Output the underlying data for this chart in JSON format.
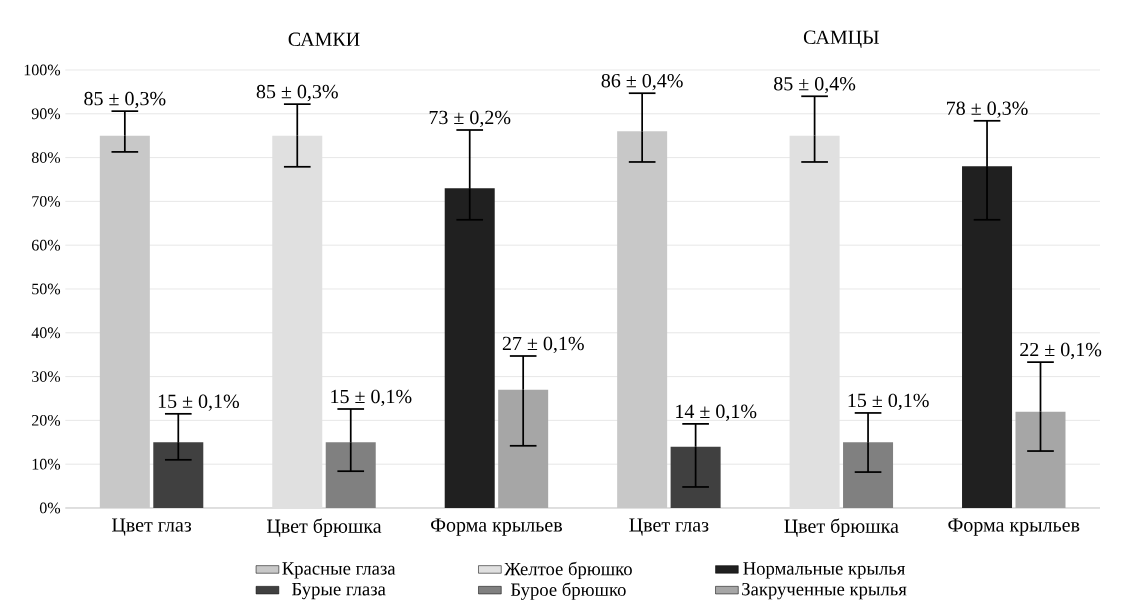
{
  "chart_data": {
    "type": "bar",
    "categories": [
      "Цвет глаз",
      "Цвет брюшка",
      "Форма крыльев",
      "Цвет глаз",
      "Цвет брюшка",
      "Форма крыльев"
    ],
    "annotations": [
      "САМКИ",
      "САМЦЫ"
    ],
    "ylim": [
      0,
      100
    ],
    "yticks": [
      {
        "value": 0,
        "label": "0%"
      },
      {
        "value": 10,
        "label": "10%"
      },
      {
        "value": 20,
        "label": "20%"
      },
      {
        "value": 30,
        "label": "30%"
      },
      {
        "value": 40,
        "label": "40%"
      },
      {
        "value": 50,
        "label": "50%"
      },
      {
        "value": 60,
        "label": "60%"
      },
      {
        "value": 70,
        "label": "70%"
      },
      {
        "value": 80,
        "label": "80%"
      },
      {
        "value": 90,
        "label": "90%"
      },
      {
        "value": 100,
        "label": "100%"
      }
    ],
    "grid": "y",
    "legend": "bottom",
    "series": [
      {
        "name": "Красные глаза",
        "color": "#c8c8c8",
        "values": [
          85,
          null,
          null,
          86,
          null,
          null
        ],
        "errors": [
          [
            81.3,
            90.6
          ],
          null,
          null,
          [
            79,
            94.7
          ],
          null,
          null
        ],
        "value_labels": [
          "85 ± 0,3%",
          null,
          null,
          "86 ± 0,4%",
          null,
          null
        ]
      },
      {
        "name": "Бурые глаза",
        "color": "#404040",
        "values": [
          15,
          null,
          null,
          14,
          null,
          null
        ],
        "errors": [
          [
            11,
            21.5
          ],
          null,
          null,
          [
            4.8,
            19.2
          ],
          null,
          null
        ],
        "value_labels": [
          "15 ± 0,1%",
          null,
          null,
          "14 ± 0,1%",
          null,
          null
        ]
      },
      {
        "name": "Желтое брюшко",
        "color": "#e0e0e0",
        "values": [
          null,
          85,
          null,
          null,
          85,
          null
        ],
        "errors": [
          null,
          [
            77.9,
            92.2
          ],
          null,
          null,
          [
            79,
            94
          ],
          null
        ],
        "value_labels": [
          null,
          "85 ± 0,3%",
          null,
          null,
          "85 ± 0,4%",
          null
        ]
      },
      {
        "name": "Бурое брюшко",
        "color": "#808080",
        "values": [
          null,
          15,
          null,
          null,
          15,
          null
        ],
        "errors": [
          null,
          [
            8.4,
            22.6
          ],
          null,
          null,
          [
            8.2,
            21.7
          ],
          null
        ],
        "value_labels": [
          null,
          "15 ± 0,1%",
          null,
          null,
          "15 ± 0,1%",
          null
        ]
      },
      {
        "name": "Нормальные крылья",
        "color": "#202020",
        "values": [
          null,
          null,
          73,
          null,
          null,
          78
        ],
        "errors": [
          null,
          null,
          [
            65.8,
            86.3
          ],
          null,
          null,
          [
            65.8,
            88.4
          ]
        ],
        "value_labels": [
          null,
          null,
          "73 ± 0,2%",
          null,
          null,
          "78 ± 0,3%"
        ]
      },
      {
        "name": "Закрученные крылья",
        "color": "#a6a6a6",
        "values": [
          null,
          null,
          27,
          null,
          null,
          22
        ],
        "errors": [
          null,
          null,
          [
            14.2,
            34.7
          ],
          null,
          null,
          [
            13,
            33.3
          ]
        ],
        "value_labels": [
          null,
          null,
          "27 ± 0,1%",
          null,
          null,
          "22 ± 0,1%"
        ]
      }
    ]
  }
}
